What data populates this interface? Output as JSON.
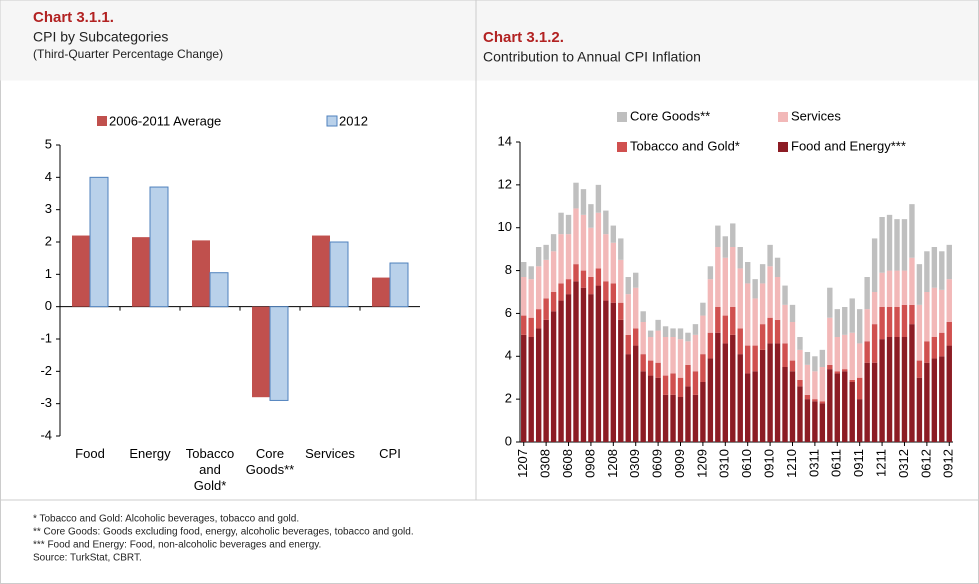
{
  "chart_data": [
    {
      "type": "bar",
      "title": "Chart 3.1.1.",
      "subtitle": "CPI by Subcategories",
      "note": "(Third-Quarter Percentage Change)",
      "categories": [
        "Food",
        "Energy",
        "Tobacco and Gold*",
        "Core Goods**",
        "Services",
        "CPI"
      ],
      "series": [
        {
          "name": "2006-2011 Average",
          "color": "#c0504d",
          "values": [
            2.2,
            2.15,
            2.05,
            -2.8,
            2.2,
            0.9
          ]
        },
        {
          "name": "2012",
          "color": "#b9d1ea",
          "values": [
            4.0,
            3.7,
            1.05,
            -2.9,
            2.0,
            1.35
          ]
        }
      ],
      "ylim": [
        -4,
        5
      ],
      "yticks": [
        -4,
        -3,
        -2,
        -1,
        0,
        1,
        2,
        3,
        4,
        5
      ]
    },
    {
      "type": "stacked_bar",
      "title": "Chart 3.1.2.",
      "subtitle": "Contribution to Annual CPI Inflation",
      "categories": [
        "1207",
        null,
        null,
        "0308",
        null,
        null,
        "0608",
        null,
        null,
        "0908",
        null,
        null,
        "1208",
        null,
        null,
        "0309",
        null,
        null,
        "0609",
        null,
        null,
        "0909",
        null,
        null,
        "1209",
        null,
        null,
        "0310",
        null,
        null,
        "0610",
        null,
        null,
        "0910",
        null,
        null,
        "1210",
        null,
        null,
        "0311",
        null,
        null,
        "0611",
        null,
        null,
        "0911",
        null,
        null,
        "1211",
        null,
        null,
        "0312",
        null,
        null,
        "0612",
        null,
        null,
        "0912"
      ],
      "series": [
        {
          "name": "Food and Energy***",
          "color": "#8c1c24",
          "values": [
            5.0,
            4.9,
            5.3,
            5.7,
            6.1,
            6.6,
            6.9,
            7.5,
            7.2,
            6.9,
            7.3,
            6.6,
            6.5,
            5.7,
            4.1,
            4.5,
            3.3,
            3.1,
            3.0,
            2.2,
            2.2,
            2.1,
            2.6,
            2.2,
            2.8,
            3.9,
            5.1,
            4.6,
            5.0,
            4.1,
            3.2,
            3.3,
            4.3,
            4.6,
            4.6,
            3.5,
            3.3,
            2.6,
            2.0,
            1.9,
            1.8,
            3.4,
            3.2,
            3.3,
            2.8,
            2.0,
            3.7,
            3.7,
            4.8,
            4.9,
            4.9,
            4.9,
            5.5,
            3.0,
            3.7,
            3.9,
            4.0,
            4.5
          ]
        },
        {
          "name": "Tobacco and Gold*",
          "color": "#d0504f",
          "values": [
            0.9,
            0.9,
            0.9,
            1.0,
            0.9,
            0.8,
            0.7,
            0.8,
            0.8,
            0.8,
            0.8,
            0.9,
            0.9,
            0.8,
            0.9,
            0.8,
            0.8,
            0.7,
            0.7,
            0.9,
            1.0,
            0.9,
            1.0,
            1.1,
            1.3,
            1.2,
            1.2,
            1.3,
            1.3,
            1.2,
            1.3,
            1.2,
            1.2,
            1.2,
            1.1,
            1.1,
            0.5,
            0.3,
            0.2,
            0.1,
            0.1,
            0.2,
            0.1,
            0.1,
            0.1,
            1.0,
            1.0,
            1.8,
            1.5,
            1.4,
            1.4,
            1.5,
            0.9,
            0.8,
            1.0,
            1.0,
            1.1,
            1.1
          ]
        },
        {
          "name": "Services",
          "color": "#f2b8b8",
          "values": [
            1.8,
            1.8,
            2.0,
            1.8,
            1.9,
            2.3,
            2.1,
            2.6,
            2.6,
            2.3,
            2.6,
            2.2,
            1.9,
            2.0,
            1.9,
            1.9,
            1.5,
            1.1,
            1.5,
            1.8,
            1.7,
            1.8,
            1.1,
            1.7,
            1.8,
            2.5,
            2.8,
            2.7,
            2.8,
            2.8,
            2.9,
            2.2,
            1.9,
            2.4,
            2.0,
            1.8,
            1.8,
            1.4,
            1.4,
            1.3,
            1.6,
            2.2,
            1.6,
            1.6,
            2.2,
            1.6,
            1.5,
            1.5,
            1.6,
            1.7,
            1.7,
            1.6,
            2.2,
            2.6,
            2.3,
            2.3,
            2.0,
            2.0
          ]
        },
        {
          "name": "Core Goods**",
          "color": "#bfbfbf",
          "values": [
            0.7,
            0.6,
            0.9,
            0.7,
            0.8,
            1.0,
            0.9,
            1.2,
            1.2,
            1.1,
            1.3,
            1.1,
            0.8,
            1.0,
            0.8,
            0.7,
            0.5,
            0.3,
            0.5,
            0.5,
            0.4,
            0.5,
            0.4,
            0.5,
            0.6,
            0.6,
            1.0,
            1.0,
            1.1,
            1.0,
            1.0,
            0.9,
            0.9,
            1.0,
            0.9,
            0.9,
            0.8,
            0.6,
            0.6,
            0.7,
            0.8,
            1.4,
            1.3,
            1.3,
            1.6,
            1.6,
            1.5,
            2.5,
            2.6,
            2.6,
            2.4,
            2.4,
            2.5,
            1.9,
            1.9,
            1.9,
            1.8,
            1.6
          ]
        }
      ],
      "ylim": [
        0,
        14
      ],
      "yticks": [
        0,
        2,
        4,
        6,
        8,
        10,
        12,
        14
      ]
    }
  ],
  "footnotes": [
    "* Tobacco and Gold: Alcoholic beverages, tobacco and gold.",
    "** Core Goods: Goods excluding food, energy, alcoholic beverages, tobacco and gold.",
    "*** Food and Energy: Food, non-alcoholic beverages and energy.",
    "Source: TurkStat, CBRT."
  ]
}
